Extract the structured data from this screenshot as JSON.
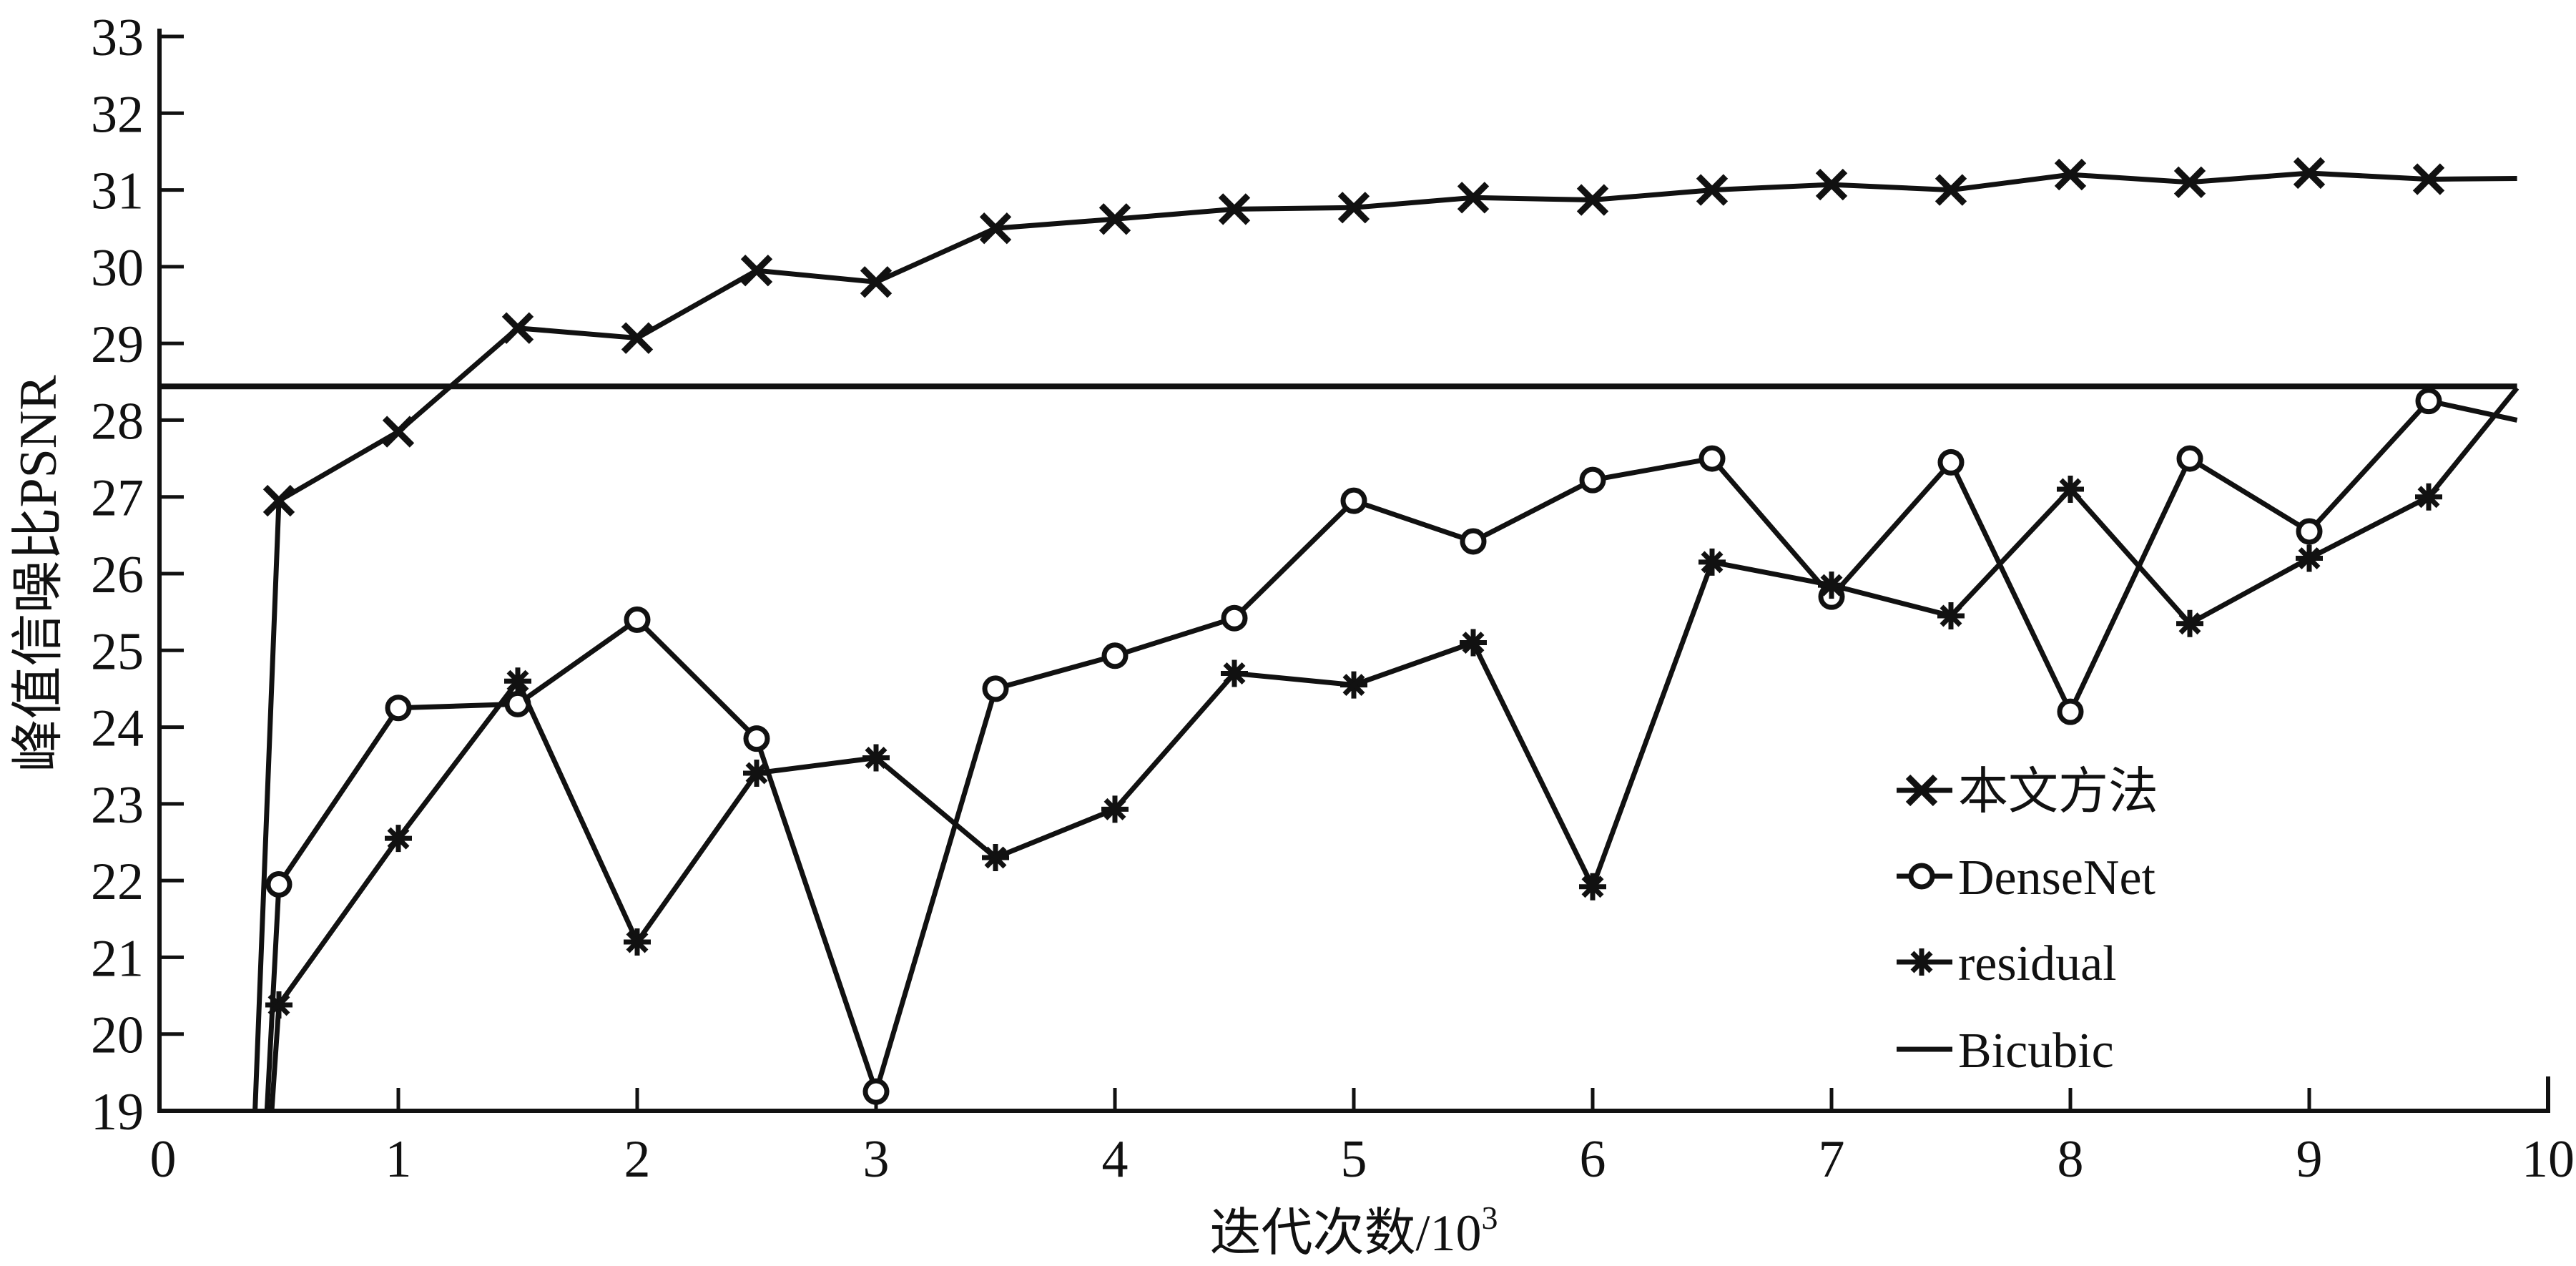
{
  "chart_data": {
    "type": "line",
    "title": "",
    "xlabel": "迭代次数/10³",
    "xlabel_base": "迭代次数/10",
    "xlabel_sup": "3",
    "ylabel": "峰值信噪比PSNR",
    "xlim": [
      0,
      10
    ],
    "ylim": [
      19,
      33
    ],
    "xticks": [
      0,
      1,
      2,
      3,
      4,
      5,
      6,
      7,
      8,
      9,
      10
    ],
    "yticks": [
      19,
      20,
      21,
      22,
      23,
      24,
      25,
      26,
      27,
      28,
      29,
      30,
      31,
      32,
      33
    ],
    "grid": false,
    "legend_position": "inside-lower-right",
    "line_color": "#111111",
    "background_color": "#ffffff",
    "series": [
      {
        "name": "本文方法",
        "marker": "x",
        "lead_in": {
          "x": 0.4,
          "y": 19.0
        },
        "x": [
          0.5,
          1.0,
          1.5,
          2.0,
          2.5,
          3.0,
          3.5,
          4.0,
          4.5,
          5.0,
          5.5,
          6.0,
          6.5,
          7.0,
          7.5,
          8.0,
          8.5,
          9.0,
          9.5
        ],
        "y": [
          26.95,
          27.85,
          29.2,
          29.07,
          29.95,
          29.8,
          30.5,
          30.62,
          30.75,
          30.77,
          30.9,
          30.87,
          31.0,
          31.07,
          31.0,
          31.2,
          31.1,
          31.22,
          31.14
        ],
        "tail": {
          "x": 9.87,
          "y": 31.15
        }
      },
      {
        "name": "DenseNet",
        "marker": "circle",
        "lead_in": {
          "x": 0.45,
          "y": 19.0
        },
        "x": [
          0.5,
          1.0,
          1.5,
          2.0,
          2.5,
          3.0,
          3.5,
          4.0,
          4.5,
          5.0,
          5.5,
          6.0,
          6.5,
          7.0,
          7.5,
          8.0,
          8.5,
          9.0,
          9.5
        ],
        "y": [
          21.95,
          24.25,
          24.3,
          25.4,
          23.85,
          19.25,
          24.5,
          24.93,
          25.42,
          26.95,
          26.42,
          27.22,
          27.5,
          25.7,
          27.45,
          24.2,
          27.5,
          26.55,
          28.25
        ],
        "tail": {
          "x": 9.87,
          "y": 28.0
        }
      },
      {
        "name": "residual",
        "marker": "asterisk",
        "lead_in": {
          "x": 0.47,
          "y": 19.0
        },
        "x": [
          0.5,
          1.0,
          1.5,
          2.0,
          2.5,
          3.0,
          3.5,
          4.0,
          4.5,
          5.0,
          5.5,
          6.0,
          6.5,
          7.0,
          7.5,
          8.0,
          8.5,
          9.0,
          9.5
        ],
        "y": [
          20.38,
          22.55,
          24.6,
          21.2,
          23.4,
          23.6,
          22.3,
          22.93,
          24.7,
          24.55,
          25.1,
          21.92,
          26.15,
          25.85,
          25.45,
          27.1,
          25.35,
          26.2,
          27.0
        ],
        "tail": {
          "x": 9.87,
          "y": 28.42
        }
      },
      {
        "name": "Bicubic",
        "marker": "none",
        "x": [
          0.0,
          9.87
        ],
        "y": [
          28.44,
          28.44
        ]
      }
    ]
  }
}
